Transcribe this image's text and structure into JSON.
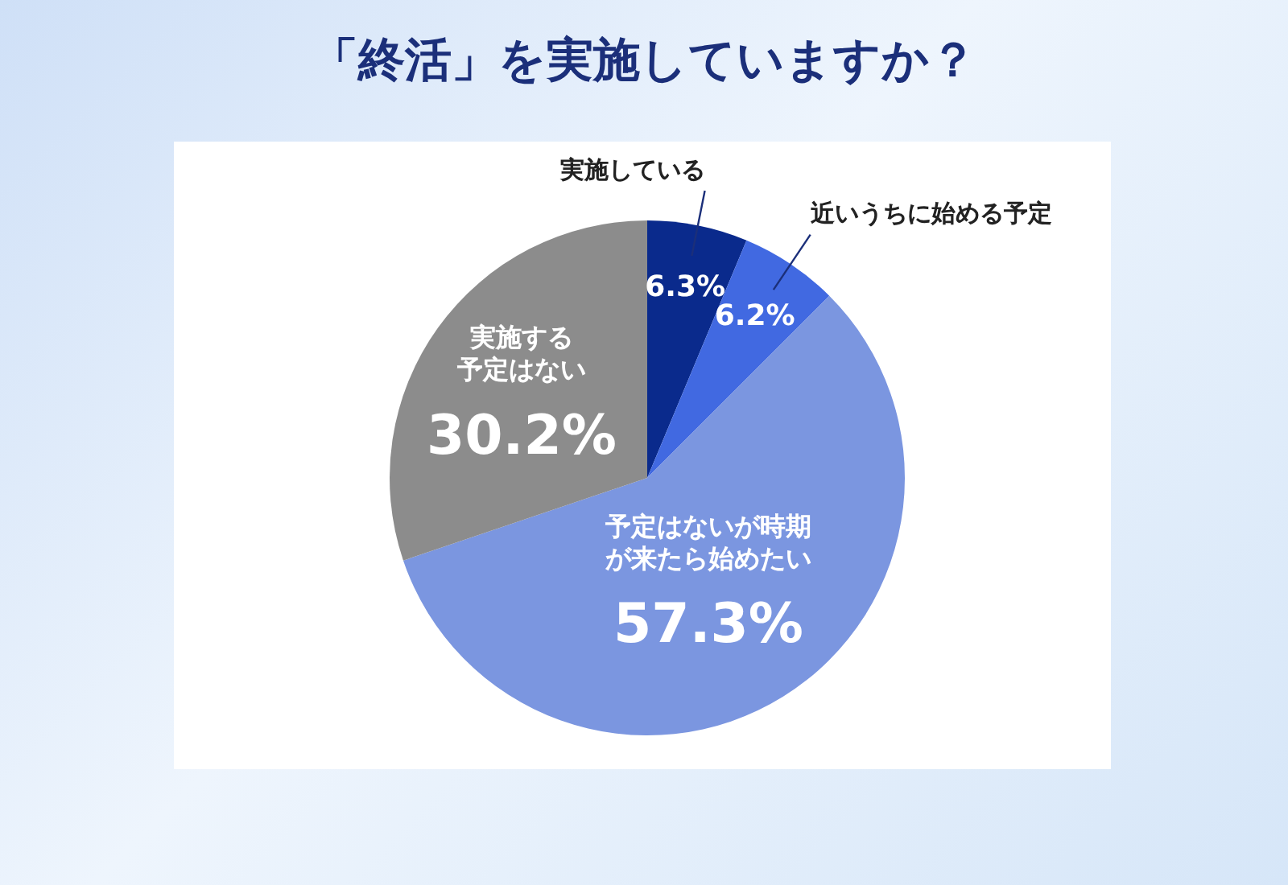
{
  "chart_data": {
    "type": "pie",
    "title": "「終活」を実施していますか？",
    "categories": [
      "実施している",
      "近いうちに始める予定",
      "予定はないが時期が来たら始めたい",
      "実施する予定はない"
    ],
    "values": [
      6.3,
      6.2,
      57.3,
      30.2
    ],
    "colors": [
      "#0a2a8c",
      "#4169e1",
      "#7b96e0",
      "#8c8c8c"
    ],
    "value_labels": [
      "6.3%",
      "6.2%",
      "57.3%",
      "30.2%"
    ]
  }
}
